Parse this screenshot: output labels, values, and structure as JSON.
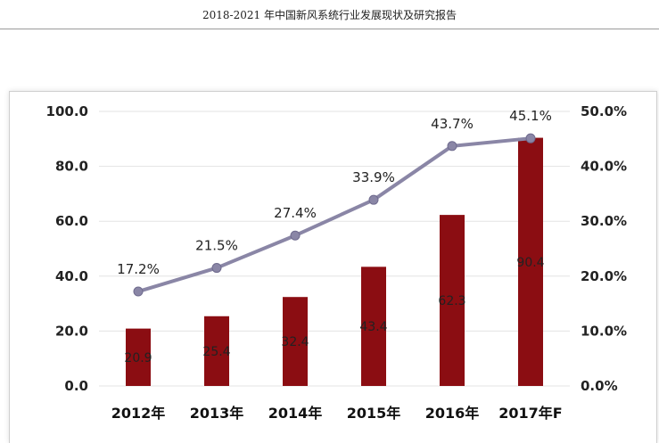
{
  "header": {
    "title": "2018-2021 年中国新风系统行业发展现状及研究报告"
  },
  "chart_data": {
    "type": "bar",
    "categories": [
      "2012年",
      "2013年",
      "2014年",
      "2015年",
      "2016年",
      "2017年F"
    ],
    "series": [
      {
        "type": "bar",
        "axis": "left",
        "values": [
          20.9,
          25.4,
          32.4,
          43.4,
          62.3,
          90.4
        ],
        "labels": [
          "20.9",
          "25.4",
          "32.4",
          "43.4",
          "62.3",
          "90.4"
        ]
      },
      {
        "type": "line",
        "axis": "right",
        "values": [
          17.2,
          21.5,
          27.4,
          33.9,
          43.7,
          45.1
        ],
        "labels": [
          "17.2%",
          "21.5%",
          "27.4%",
          "33.9%",
          "43.7%",
          "45.1%"
        ]
      }
    ],
    "y_left": {
      "ylim": [
        0,
        100
      ],
      "ticks": [
        "0.0",
        "20.0",
        "40.0",
        "60.0",
        "80.0",
        "100.0"
      ]
    },
    "y_right": {
      "ylim": [
        0,
        50
      ],
      "ticks": [
        "0.0%",
        "10.0%",
        "20.0%",
        "30.0%",
        "40.0%",
        "50.0%"
      ]
    },
    "title": "",
    "xlabel": "",
    "ylabel": "",
    "grid": true,
    "legend": "none",
    "colors": {
      "bar": "#8b0d12",
      "line": "#8a86a6",
      "marker": "#8a86a6",
      "grid": "#e3e3e3"
    }
  }
}
